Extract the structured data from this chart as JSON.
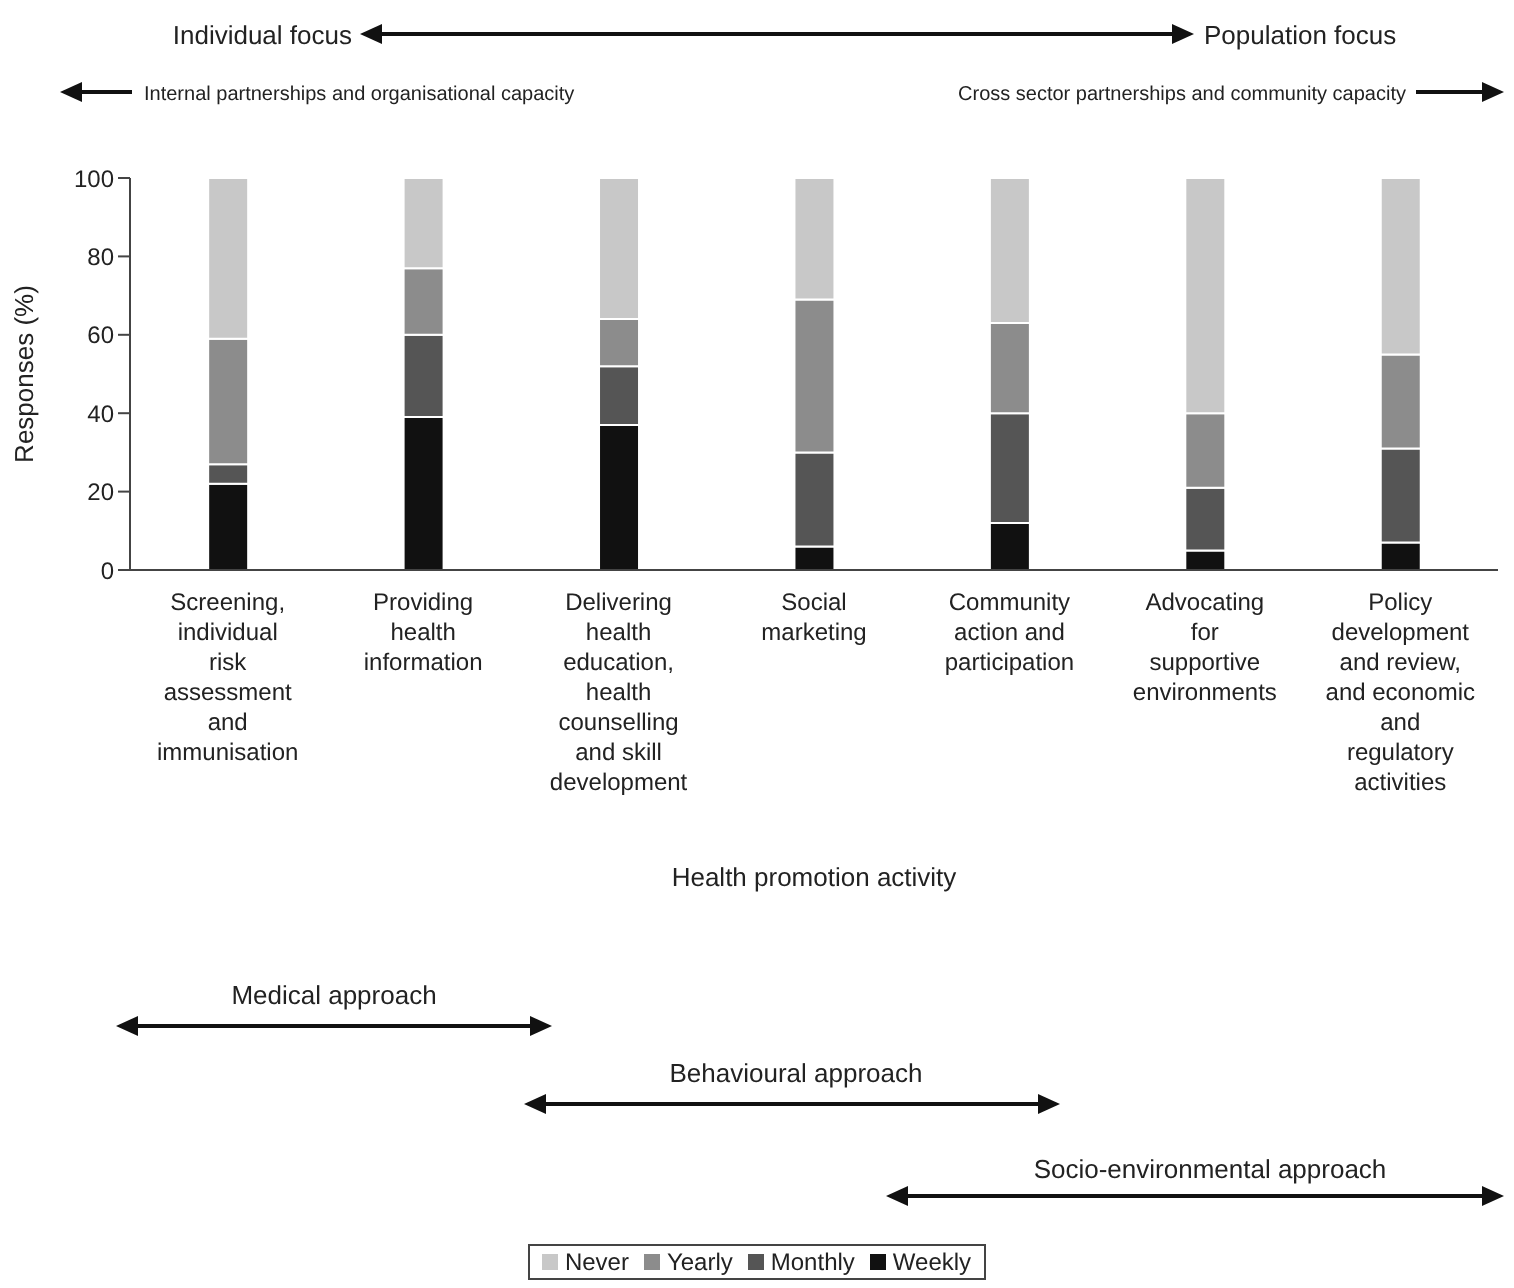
{
  "chart_data": {
    "type": "bar",
    "stacked": true,
    "ylabel": "Responses (%)",
    "xlabel": "Health promotion activity",
    "categories": [
      "Screening, individual risk assessment and immunisation",
      "Providing health information",
      "Delivering health education, health counselling and skill development",
      "Social marketing",
      "Community action and participation",
      "Advocating for supportive environments",
      "Policy development and review, and economic and regulatory activities"
    ],
    "series": [
      {
        "name": "Weekly",
        "color": "#111111",
        "values": [
          22,
          39,
          37,
          6,
          12,
          5,
          7
        ]
      },
      {
        "name": "Monthly",
        "color": "#555555",
        "values": [
          5,
          21,
          15,
          24,
          28,
          16,
          24
        ]
      },
      {
        "name": "Yearly",
        "color": "#8c8c8c",
        "values": [
          32,
          17,
          12,
          39,
          23,
          19,
          24
        ]
      },
      {
        "name": "Never",
        "color": "#c8c8c8",
        "values": [
          41,
          23,
          36,
          31,
          37,
          60,
          45
        ]
      }
    ],
    "ylim": [
      0,
      100
    ],
    "yticks": [
      0,
      20,
      40,
      60,
      80,
      100
    ],
    "grid": false,
    "legend": "bottom",
    "annotations": [
      "Individual focus",
      "Population focus",
      "Internal partnerships and organisational capacity",
      "Cross sector partnerships and community capacity",
      "Medical approach",
      "Behavioural approach",
      "Socio-environmental approach"
    ]
  }
}
